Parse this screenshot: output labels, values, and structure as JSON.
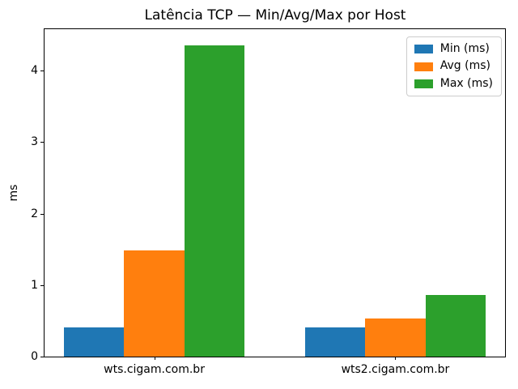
{
  "chart_data": {
    "type": "bar",
    "title": "Latência TCP — Min/Avg/Max por Host",
    "xlabel": "",
    "ylabel": "ms",
    "categories": [
      "wts.cigam.com.br",
      "wts2.cigam.com.br"
    ],
    "series": [
      {
        "name": "Min (ms)",
        "color": "#1f77b4",
        "values": [
          0.41,
          0.41
        ]
      },
      {
        "name": "Avg (ms)",
        "color": "#ff7f0e",
        "values": [
          1.48,
          0.53
        ]
      },
      {
        "name": "Max (ms)",
        "color": "#2ca02c",
        "values": [
          4.35,
          0.86
        ]
      }
    ],
    "ylim": [
      0,
      4.58
    ],
    "yticks": [
      0,
      1,
      2,
      3,
      4
    ],
    "xlim": [
      -0.455,
      1.455
    ],
    "bar_width": 0.25,
    "legend_position": "upper right",
    "grid": false,
    "background_color": "#ffffff",
    "spine_color": "#000000"
  }
}
